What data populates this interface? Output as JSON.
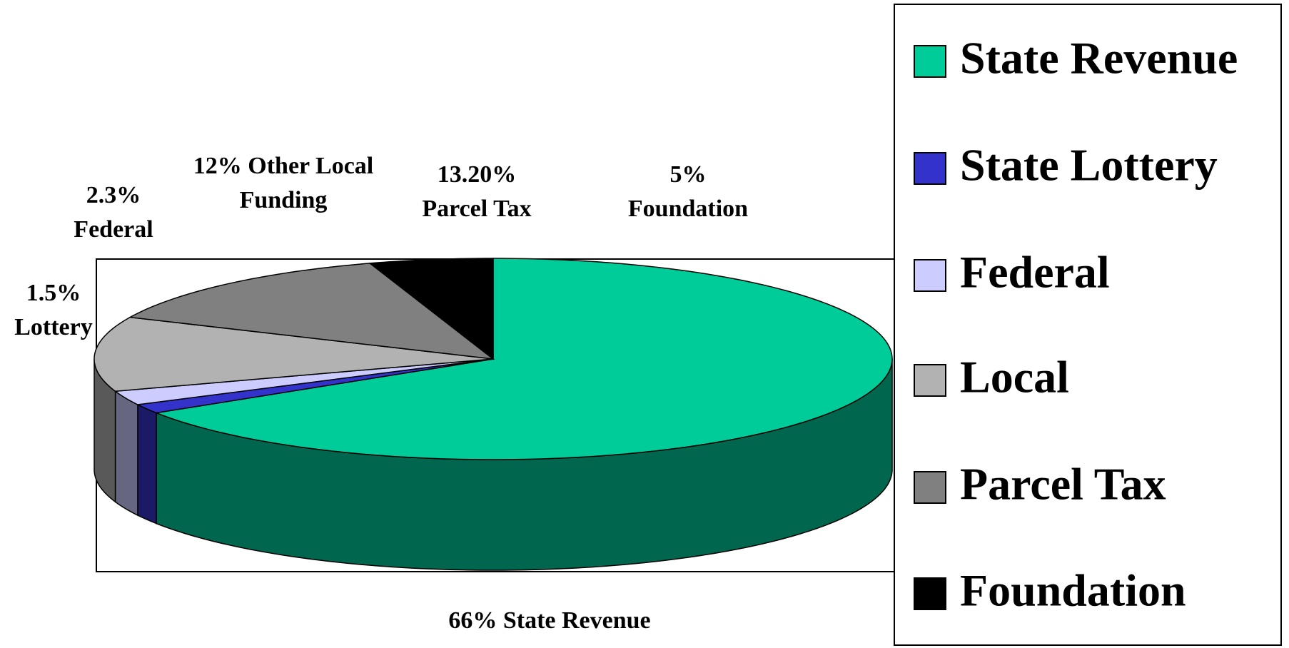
{
  "chart_data": {
    "type": "pie",
    "three_d": true,
    "categories": [
      "State Revenue",
      "State Lottery",
      "Federal",
      "Local",
      "Parcel Tax",
      "Foundation"
    ],
    "values": [
      66,
      1.5,
      2.3,
      12,
      13.2,
      5
    ],
    "value_labels": [
      "66% State Revenue",
      "1.5% Lottery",
      "2.3% Federal",
      "12% Other Local Funding",
      "13.20% Parcel Tax",
      "5% Foundation"
    ],
    "colors": [
      "#00cc99",
      "#3333cc",
      "#ccccff",
      "#b2b2b2",
      "#808080",
      "#000000"
    ],
    "legend": "right"
  }
}
